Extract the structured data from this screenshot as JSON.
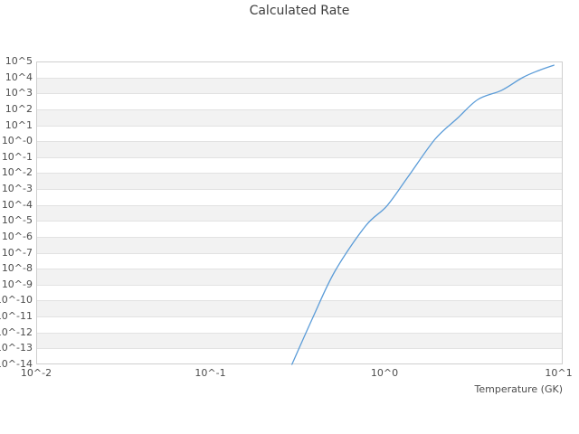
{
  "colors": {
    "background": "#ffffff",
    "line": "#5b9cd8",
    "band_gray": "#f2f2f2",
    "gridline": "#e2e2e2",
    "plot_border": "#cfcfcf",
    "tick_text": "#4d4d4d",
    "title_text": "#3d3d3d"
  },
  "chart_data": {
    "type": "line",
    "title": "Calculated Rate",
    "xlabel": "Temperature (GK)",
    "ylabel": "",
    "x_scale": "log",
    "y_scale": "log",
    "xlim": [
      0.01,
      10.55
    ],
    "ylim": [
      1e-14,
      100000.0
    ],
    "grid": "horizontal-gridlines-with-alternating-bands",
    "legend": "none",
    "x_ticks": [
      {
        "label": "10^-2",
        "value": 0.01
      },
      {
        "label": "10^-1",
        "value": 0.1
      },
      {
        "label": "10^0",
        "value": 1
      },
      {
        "label": "10^1",
        "value": 10
      }
    ],
    "y_ticks": [
      {
        "label": "10^5",
        "exp": 5
      },
      {
        "label": "10^4",
        "exp": 4
      },
      {
        "label": "10^3",
        "exp": 3
      },
      {
        "label": "10^2",
        "exp": 2
      },
      {
        "label": "10^1",
        "exp": 1
      },
      {
        "label": "10^-0",
        "exp": 0
      },
      {
        "label": "10^-1",
        "exp": -1
      },
      {
        "label": "10^-2",
        "exp": -2
      },
      {
        "label": "10^-3",
        "exp": -3
      },
      {
        "label": "10^-4",
        "exp": -4
      },
      {
        "label": "10^-5",
        "exp": -5
      },
      {
        "label": "10^-6",
        "exp": -6
      },
      {
        "label": "10^-7",
        "exp": -7
      },
      {
        "label": "10^-8",
        "exp": -8
      },
      {
        "label": "10^-9",
        "exp": -9
      },
      {
        "label": "10^-10",
        "exp": -10
      },
      {
        "label": "10^-11",
        "exp": -11
      },
      {
        "label": "10^-12",
        "exp": -12
      },
      {
        "label": "10^-13",
        "exp": -13
      },
      {
        "label": "10^-14",
        "exp": -14
      }
    ],
    "series": [
      {
        "name": "Calculated Rate",
        "color": "#5b9cd8",
        "points_T_log10rate": [
          [
            0.294,
            -14.0
          ],
          [
            0.39,
            -11.0
          ],
          [
            0.519,
            -8.16
          ],
          [
            0.778,
            -5.32
          ],
          [
            1.03,
            -4.07
          ],
          [
            1.36,
            -2.26
          ],
          [
            1.95,
            0.12
          ],
          [
            2.62,
            1.43
          ],
          [
            3.44,
            2.62
          ],
          [
            4.7,
            3.19
          ],
          [
            6.18,
            3.98
          ],
          [
            7.66,
            4.43
          ],
          [
            9.38,
            4.77
          ]
        ]
      }
    ]
  }
}
